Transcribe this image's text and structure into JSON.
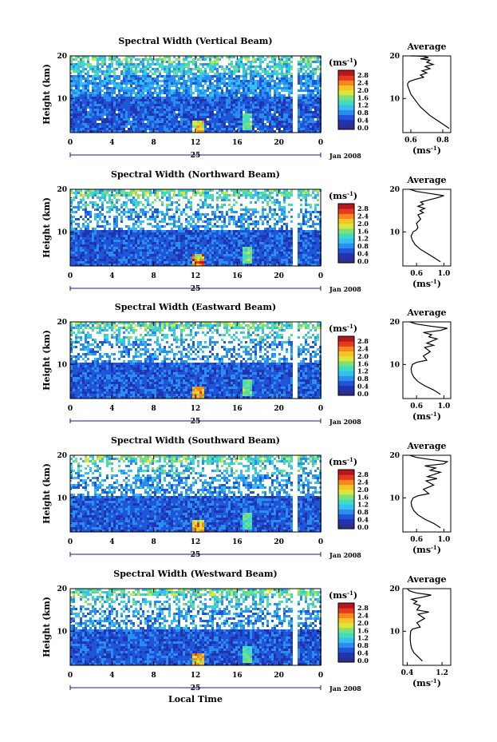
{
  "chart_data": [
    {
      "type": "heatmap",
      "title": "Spectral Width (Vertical Beam)",
      "ylabel": "Height (km)",
      "xticks": [
        "0",
        "4",
        "8",
        "12",
        "16",
        "20",
        "0"
      ],
      "date_label": "25",
      "month_label": "Jan 2008",
      "xlim": [
        0,
        24
      ],
      "ylim": [
        2,
        20
      ],
      "yticks": [
        "10",
        "20"
      ],
      "colorbar": {
        "unit": "(ms⁻¹)",
        "ticks": [
          "0.0",
          "0.4",
          "0.8",
          "1.2",
          "1.6",
          "2.0",
          "2.4",
          "2.8"
        ],
        "range": [
          0,
          2.8
        ]
      },
      "average": {
        "title": "Average",
        "xunit": "(ms⁻¹)",
        "xticks": [
          "0.6",
          "0.8"
        ],
        "xlim": [
          0.55,
          0.85
        ],
        "yticks": [
          "10",
          "20"
        ],
        "x": [
          0.84,
          0.8,
          0.76,
          0.72,
          0.69,
          0.66,
          0.64,
          0.62,
          0.6,
          0.59,
          0.58,
          0.58,
          0.59,
          0.63,
          0.68,
          0.66,
          0.7,
          0.67,
          0.72,
          0.69,
          0.74,
          0.7,
          0.72,
          0.66,
          0.71,
          0.68,
          0.62,
          0.6,
          0.6
        ],
        "y": [
          3,
          4,
          5,
          6,
          7,
          8,
          9,
          10,
          11,
          12,
          13,
          13.5,
          14,
          14.5,
          15,
          15.5,
          16,
          16.5,
          17,
          17.5,
          18,
          18.5,
          19,
          19.3,
          19.6,
          19.9,
          20,
          20,
          20
        ]
      }
    },
    {
      "type": "heatmap",
      "title": "Spectral Width (Northward Beam)",
      "ylabel": "Height (km)",
      "xticks": [
        "0",
        "4",
        "8",
        "12",
        "16",
        "20",
        "0"
      ],
      "date_label": "25",
      "month_label": "Jan 2008",
      "xlim": [
        0,
        24
      ],
      "ylim": [
        2,
        20
      ],
      "yticks": [
        "10",
        "20"
      ],
      "colorbar": {
        "unit": "(ms⁻¹)",
        "ticks": [
          "0.0",
          "0.4",
          "0.8",
          "1.2",
          "1.6",
          "2.0",
          "2.4",
          "2.8"
        ],
        "range": [
          0,
          2.8
        ]
      },
      "average": {
        "title": "Average",
        "xunit": "(ms⁻¹)",
        "xticks": [
          "0.6",
          "1.0"
        ],
        "xlim": [
          0.4,
          1.1
        ],
        "yticks": [
          "10",
          "20"
        ],
        "x": [
          0.95,
          0.85,
          0.75,
          0.65,
          0.58,
          0.54,
          0.52,
          0.55,
          0.6,
          0.62,
          0.6,
          0.66,
          0.62,
          0.7,
          0.65,
          0.72,
          0.62,
          0.7,
          0.66,
          0.78,
          0.9,
          1.0,
          0.8,
          0.6,
          0.5
        ],
        "y": [
          3,
          4,
          5,
          6,
          7,
          8,
          9,
          10,
          10.5,
          11,
          12,
          13,
          14,
          14.5,
          15,
          15.5,
          16,
          16.5,
          17,
          17.5,
          18,
          18.5,
          19,
          19.5,
          20
        ]
      }
    },
    {
      "type": "heatmap",
      "title": "Spectral Width (Eastward Beam)",
      "ylabel": "Height (km)",
      "xticks": [
        "0",
        "4",
        "8",
        "12",
        "16",
        "20",
        "0"
      ],
      "date_label": "25",
      "month_label": "Jan 2008",
      "xlim": [
        0,
        24
      ],
      "ylim": [
        2,
        20
      ],
      "yticks": [
        "10",
        "20"
      ],
      "colorbar": {
        "unit": "(ms⁻¹)",
        "ticks": [
          "0.0",
          "0.4",
          "0.8",
          "1.2",
          "1.6",
          "2.0",
          "2.4",
          "2.8"
        ],
        "range": [
          0,
          2.8
        ]
      },
      "average": {
        "title": "Average",
        "xunit": "(ms⁻¹)",
        "xticks": [
          "0.6",
          "1.0"
        ],
        "xlim": [
          0.4,
          1.1
        ],
        "yticks": [
          "10",
          "20"
        ],
        "x": [
          0.95,
          0.85,
          0.72,
          0.62,
          0.56,
          0.53,
          0.52,
          0.54,
          0.6,
          0.75,
          0.7,
          0.8,
          0.72,
          0.85,
          0.75,
          0.9,
          0.78,
          0.82,
          0.7,
          0.95,
          1.05,
          0.8,
          0.6,
          0.5
        ],
        "y": [
          3,
          4,
          5,
          6,
          7,
          8,
          9,
          10,
          10.5,
          11,
          12,
          13,
          14,
          14.5,
          15,
          16,
          16.5,
          17,
          17.5,
          18,
          18.5,
          19,
          19.5,
          20
        ]
      }
    },
    {
      "type": "heatmap",
      "title": "Spectral Width (Southward Beam)",
      "ylabel": "Height (km)",
      "xticks": [
        "0",
        "4",
        "8",
        "12",
        "16",
        "20",
        "0"
      ],
      "date_label": "25",
      "month_label": "Jan 2008",
      "xlim": [
        0,
        24
      ],
      "ylim": [
        2,
        20
      ],
      "yticks": [
        "10",
        "20"
      ],
      "colorbar": {
        "unit": "(ms⁻¹)",
        "ticks": [
          "0.0",
          "0.4",
          "0.8",
          "1.2",
          "1.6",
          "2.0",
          "2.4",
          "2.8"
        ],
        "range": [
          0,
          2.8
        ]
      },
      "average": {
        "title": "Average",
        "xunit": "(ms⁻¹)",
        "xticks": [
          "0.6",
          "1.0"
        ],
        "xlim": [
          0.4,
          1.1
        ],
        "yticks": [
          "10",
          "20"
        ],
        "x": [
          0.95,
          0.85,
          0.72,
          0.62,
          0.56,
          0.53,
          0.52,
          0.55,
          0.62,
          0.78,
          0.7,
          0.85,
          0.74,
          0.9,
          0.76,
          0.95,
          0.8,
          0.88,
          0.72,
          1.0,
          1.05,
          0.8,
          0.6,
          0.5
        ],
        "y": [
          3,
          4,
          5,
          6,
          7,
          8,
          9,
          10,
          10.5,
          11,
          12,
          13,
          14,
          14.5,
          15,
          16,
          16.5,
          17,
          17.5,
          18,
          18.5,
          19,
          19.5,
          20
        ]
      }
    },
    {
      "type": "heatmap",
      "title": "Spectral Width (Westward Beam)",
      "ylabel": "Height (km)",
      "xticks": [
        "0",
        "4",
        "8",
        "12",
        "16",
        "20",
        "0"
      ],
      "date_label": "25",
      "month_label": "Jan 2008",
      "xlabel": "Local Time",
      "xlim": [
        0,
        24
      ],
      "ylim": [
        2,
        20
      ],
      "yticks": [
        "10",
        "20"
      ],
      "colorbar": {
        "unit": "(ms⁻¹)",
        "ticks": [
          "0.0",
          "0.4",
          "0.8",
          "1.2",
          "1.6",
          "2.0",
          "2.4",
          "2.8"
        ],
        "range": [
          0,
          2.8
        ]
      },
      "average": {
        "title": "Average",
        "xunit": "(ms⁻¹)",
        "xticks": [
          "0.4",
          "1.2"
        ],
        "xlim": [
          0.3,
          1.4
        ],
        "yticks": [
          "10",
          "20"
        ],
        "x": [
          0.75,
          0.65,
          0.55,
          0.5,
          0.48,
          0.47,
          0.47,
          0.48,
          0.52,
          0.7,
          0.62,
          0.8,
          0.65,
          0.9,
          0.62,
          0.7,
          0.55,
          0.62,
          0.5,
          0.75,
          0.95,
          0.6,
          0.45,
          0.4
        ],
        "y": [
          3,
          4,
          5,
          6,
          7,
          8,
          9,
          10,
          10.5,
          11,
          12,
          13,
          14,
          14.5,
          15,
          16,
          16.5,
          17,
          17.5,
          18,
          18.5,
          19,
          19.5,
          20
        ]
      }
    }
  ],
  "colors": {
    "colormap": [
      "#2b2f8f",
      "#2233b0",
      "#1f55d8",
      "#2a8ef0",
      "#36c0f0",
      "#3fdcc0",
      "#7fe07a",
      "#d8e83a",
      "#f7c326",
      "#f7861c",
      "#e53a1d",
      "#b8161c"
    ],
    "line": "#000000",
    "background": "#ffffff"
  }
}
